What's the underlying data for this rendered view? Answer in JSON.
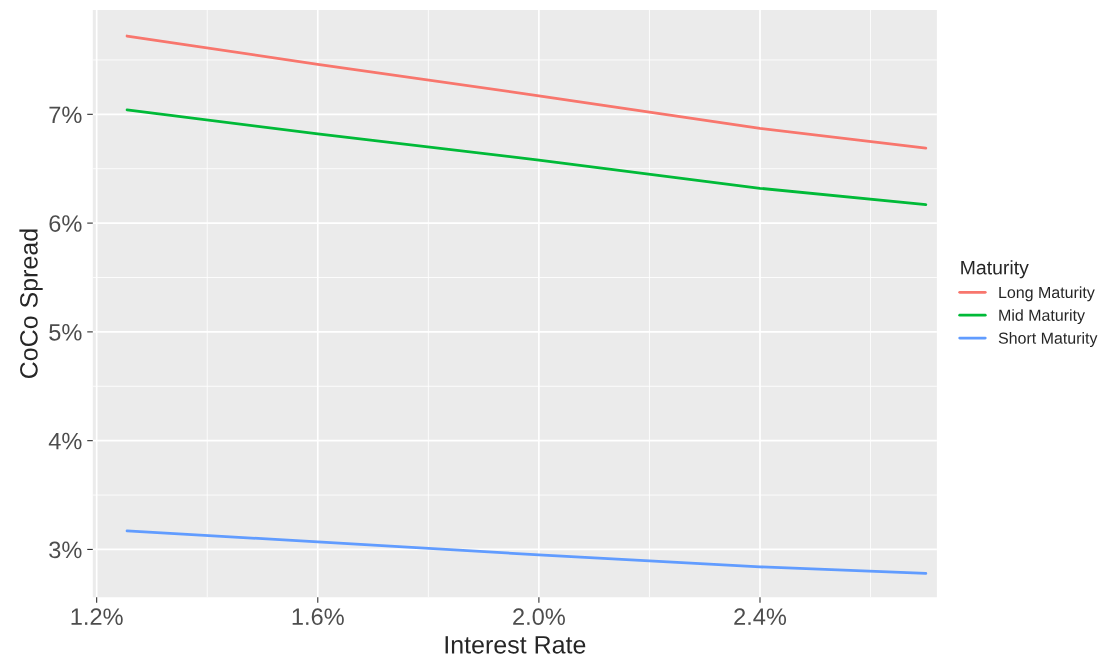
{
  "chart_data": {
    "type": "line",
    "xlabel": "Interest Rate",
    "ylabel": "CoCo Spread",
    "legend_title": "Maturity",
    "x": [
      1.255,
      1.6,
      2.0,
      2.4,
      2.7
    ],
    "series": [
      {
        "name": "Long Maturity",
        "color": "#f8766d",
        "values": [
          7.72,
          7.46,
          7.17,
          6.87,
          6.69
        ]
      },
      {
        "name": "Mid Maturity",
        "color": "#00ba38",
        "values": [
          7.04,
          6.82,
          6.58,
          6.32,
          6.17
        ]
      },
      {
        "name": "Short Maturity",
        "color": "#619cff",
        "values": [
          3.17,
          3.07,
          2.95,
          2.84,
          2.78
        ]
      }
    ],
    "xlim": [
      1.193,
      2.72
    ],
    "ylim": [
      2.56,
      7.96
    ],
    "xticks": [
      {
        "value": 1.2,
        "label": "1.2%"
      },
      {
        "value": 1.6,
        "label": "1.6%"
      },
      {
        "value": 2.0,
        "label": "2.0%"
      },
      {
        "value": 2.4,
        "label": "2.4%"
      }
    ],
    "yticks": [
      {
        "value": 3,
        "label": "3%"
      },
      {
        "value": 4,
        "label": "4%"
      },
      {
        "value": 5,
        "label": "5%"
      },
      {
        "value": 6,
        "label": "6%"
      },
      {
        "value": 7,
        "label": "7%"
      }
    ],
    "grid": true,
    "legend": "right",
    "marker": "none",
    "line_style": "solid"
  }
}
